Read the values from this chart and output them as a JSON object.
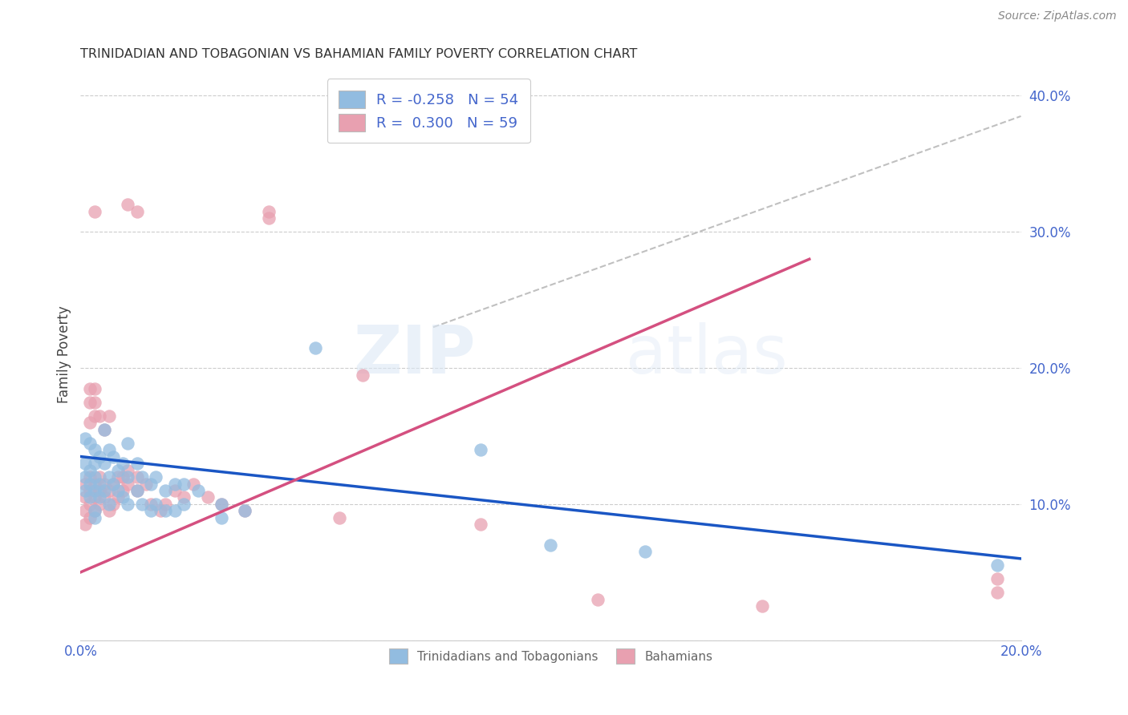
{
  "title": "TRINIDADIAN AND TOBAGONIAN VS BAHAMIAN FAMILY POVERTY CORRELATION CHART",
  "source": "Source: ZipAtlas.com",
  "ylabel": "Family Poverty",
  "xlim": [
    0.0,
    0.2
  ],
  "ylim": [
    0.0,
    0.42
  ],
  "xticks": [
    0.0,
    0.05,
    0.1,
    0.15,
    0.2
  ],
  "xticklabels": [
    "0.0%",
    "",
    "",
    "",
    "20.0%"
  ],
  "yticks_right": [
    0.1,
    0.2,
    0.3,
    0.4
  ],
  "yticklabels_right": [
    "10.0%",
    "20.0%",
    "30.0%",
    "40.0%"
  ],
  "blue_color": "#92bce0",
  "pink_color": "#e8a0b0",
  "blue_line_color": "#1a56c4",
  "pink_line_color": "#d45080",
  "dashed_line_color": "#c0c0c0",
  "r_blue": -0.258,
  "n_blue": 54,
  "r_pink": 0.3,
  "n_pink": 59,
  "legend_label_blue": "Trinidadians and Tobagonians",
  "legend_label_pink": "Bahamians",
  "blue_line": [
    [
      0.0,
      0.135
    ],
    [
      0.2,
      0.06
    ]
  ],
  "pink_line": [
    [
      0.0,
      0.05
    ],
    [
      0.155,
      0.28
    ]
  ],
  "dashed_line": [
    [
      0.075,
      0.23
    ],
    [
      0.2,
      0.385
    ]
  ],
  "blue_scatter": [
    [
      0.001,
      0.148
    ],
    [
      0.001,
      0.13
    ],
    [
      0.001,
      0.12
    ],
    [
      0.001,
      0.11
    ],
    [
      0.002,
      0.145
    ],
    [
      0.002,
      0.125
    ],
    [
      0.002,
      0.115
    ],
    [
      0.002,
      0.105
    ],
    [
      0.003,
      0.14
    ],
    [
      0.003,
      0.12
    ],
    [
      0.003,
      0.11
    ],
    [
      0.003,
      0.095
    ],
    [
      0.003,
      0.13
    ],
    [
      0.003,
      0.09
    ],
    [
      0.004,
      0.135
    ],
    [
      0.004,
      0.115
    ],
    [
      0.004,
      0.105
    ],
    [
      0.005,
      0.155
    ],
    [
      0.005,
      0.13
    ],
    [
      0.005,
      0.11
    ],
    [
      0.006,
      0.14
    ],
    [
      0.006,
      0.12
    ],
    [
      0.006,
      0.1
    ],
    [
      0.007,
      0.135
    ],
    [
      0.007,
      0.115
    ],
    [
      0.008,
      0.125
    ],
    [
      0.008,
      0.11
    ],
    [
      0.009,
      0.13
    ],
    [
      0.009,
      0.105
    ],
    [
      0.01,
      0.145
    ],
    [
      0.01,
      0.12
    ],
    [
      0.01,
      0.1
    ],
    [
      0.012,
      0.13
    ],
    [
      0.012,
      0.11
    ],
    [
      0.013,
      0.12
    ],
    [
      0.013,
      0.1
    ],
    [
      0.015,
      0.115
    ],
    [
      0.015,
      0.095
    ],
    [
      0.016,
      0.12
    ],
    [
      0.016,
      0.1
    ],
    [
      0.018,
      0.11
    ],
    [
      0.018,
      0.095
    ],
    [
      0.02,
      0.115
    ],
    [
      0.02,
      0.095
    ],
    [
      0.022,
      0.115
    ],
    [
      0.022,
      0.1
    ],
    [
      0.025,
      0.11
    ],
    [
      0.03,
      0.1
    ],
    [
      0.03,
      0.09
    ],
    [
      0.035,
      0.095
    ],
    [
      0.05,
      0.215
    ],
    [
      0.085,
      0.14
    ],
    [
      0.1,
      0.07
    ],
    [
      0.12,
      0.065
    ],
    [
      0.195,
      0.055
    ]
  ],
  "pink_scatter": [
    [
      0.001,
      0.085
    ],
    [
      0.001,
      0.095
    ],
    [
      0.001,
      0.105
    ],
    [
      0.001,
      0.115
    ],
    [
      0.002,
      0.09
    ],
    [
      0.002,
      0.1
    ],
    [
      0.002,
      0.11
    ],
    [
      0.002,
      0.12
    ],
    [
      0.002,
      0.16
    ],
    [
      0.002,
      0.175
    ],
    [
      0.002,
      0.185
    ],
    [
      0.003,
      0.095
    ],
    [
      0.003,
      0.105
    ],
    [
      0.003,
      0.115
    ],
    [
      0.003,
      0.165
    ],
    [
      0.003,
      0.175
    ],
    [
      0.003,
      0.185
    ],
    [
      0.003,
      0.315
    ],
    [
      0.004,
      0.1
    ],
    [
      0.004,
      0.11
    ],
    [
      0.004,
      0.12
    ],
    [
      0.004,
      0.165
    ],
    [
      0.005,
      0.105
    ],
    [
      0.005,
      0.115
    ],
    [
      0.005,
      0.155
    ],
    [
      0.006,
      0.095
    ],
    [
      0.006,
      0.11
    ],
    [
      0.006,
      0.165
    ],
    [
      0.007,
      0.1
    ],
    [
      0.007,
      0.115
    ],
    [
      0.008,
      0.105
    ],
    [
      0.008,
      0.12
    ],
    [
      0.009,
      0.11
    ],
    [
      0.009,
      0.12
    ],
    [
      0.01,
      0.115
    ],
    [
      0.01,
      0.125
    ],
    [
      0.01,
      0.32
    ],
    [
      0.012,
      0.11
    ],
    [
      0.012,
      0.12
    ],
    [
      0.012,
      0.315
    ],
    [
      0.014,
      0.115
    ],
    [
      0.015,
      0.1
    ],
    [
      0.017,
      0.095
    ],
    [
      0.018,
      0.1
    ],
    [
      0.02,
      0.11
    ],
    [
      0.022,
      0.105
    ],
    [
      0.024,
      0.115
    ],
    [
      0.027,
      0.105
    ],
    [
      0.03,
      0.1
    ],
    [
      0.035,
      0.095
    ],
    [
      0.04,
      0.315
    ],
    [
      0.04,
      0.31
    ],
    [
      0.055,
      0.09
    ],
    [
      0.06,
      0.195
    ],
    [
      0.085,
      0.085
    ],
    [
      0.11,
      0.03
    ],
    [
      0.145,
      0.025
    ],
    [
      0.195,
      0.035
    ],
    [
      0.195,
      0.045
    ]
  ]
}
